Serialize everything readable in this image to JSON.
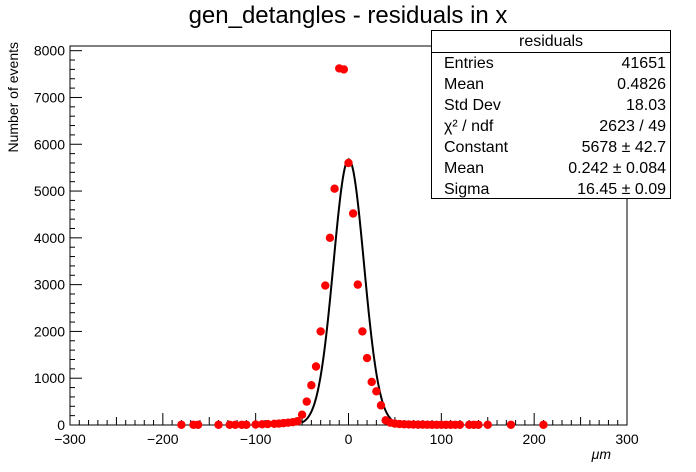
{
  "title": "gen_detangles - residuals in x",
  "stats": {
    "name": "residuals",
    "rows": [
      {
        "label": "Entries",
        "value": "41651"
      },
      {
        "label": "Mean",
        "value": "0.4826"
      },
      {
        "label": "Std Dev",
        "value": "18.03"
      },
      {
        "label": "χ² / ndf",
        "value": "2623 / 49"
      },
      {
        "label": "Constant",
        "value": "5678 ± 42.7"
      },
      {
        "label": "Mean",
        "value": "0.242 ± 0.084"
      },
      {
        "label": "Sigma",
        "value": "16.45 ± 0.09"
      }
    ]
  },
  "colors": {
    "points": "#ff0000",
    "fit": "#000000",
    "axes": "#000000"
  },
  "chart_data": {
    "type": "scatter",
    "title": "gen_detangles - residuals in x",
    "xlabel": "μm",
    "ylabel": "Number of events",
    "xlim": [
      -300,
      300
    ],
    "ylim": [
      0,
      8100
    ],
    "xticks": [
      "−300",
      "−200",
      "−100",
      "0",
      "100",
      "200",
      "300"
    ],
    "yticks": [
      "0",
      "1000",
      "2000",
      "3000",
      "4000",
      "5000",
      "6000",
      "7000",
      "8000"
    ],
    "grid": false,
    "legend": "none",
    "series": [
      {
        "kind": "points",
        "x": [
          -180,
          -167,
          -162,
          -140,
          -128,
          -122,
          -115,
          -110,
          -100,
          -93,
          -87,
          -80,
          -75,
          -70,
          -65,
          -60,
          -55,
          -50,
          -45,
          -40,
          -35,
          -30,
          -25,
          -20,
          -15,
          -10,
          -5,
          0,
          5,
          10,
          15,
          20,
          25,
          30,
          35,
          40,
          45,
          50,
          55,
          60,
          65,
          70,
          75,
          80,
          85,
          90,
          95,
          100,
          105,
          110,
          115,
          120,
          130,
          135,
          140,
          150,
          175,
          210
        ],
        "y": [
          5,
          5,
          5,
          5,
          5,
          5,
          5,
          5,
          10,
          15,
          20,
          25,
          30,
          40,
          50,
          60,
          80,
          220,
          500,
          850,
          1250,
          2000,
          2980,
          4000,
          5050,
          7620,
          7600,
          5600,
          4520,
          3000,
          2000,
          1430,
          920,
          720,
          420,
          100,
          50,
          30,
          20,
          15,
          12,
          10,
          8,
          8,
          6,
          5,
          5,
          5,
          5,
          5,
          5,
          5,
          5,
          5,
          5,
          5,
          5,
          5
        ]
      },
      {
        "kind": "gaussian-fit",
        "constant": 5678,
        "mean": 0.242,
        "sigma": 16.45,
        "xrange": [
          -50,
          55
        ]
      }
    ]
  }
}
